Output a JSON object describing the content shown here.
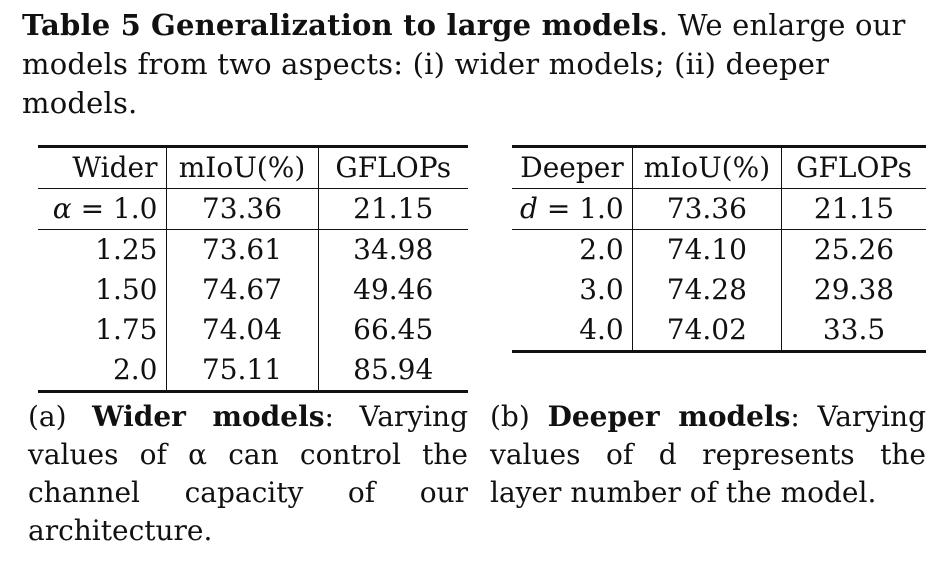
{
  "caption": {
    "table_number": "Table 5",
    "title": "Generalization to large models",
    "text": ". We enlarge our models from two aspects: (i) wider models; (ii) deeper models."
  },
  "table_a": {
    "headers": [
      "Wider",
      "mIoU(%)",
      "GFLOPs"
    ],
    "rows": [
      {
        "param": "α = 1.0",
        "miou": "73.36",
        "gflops": "21.15"
      },
      {
        "param": "1.25",
        "miou": "73.61",
        "gflops": "34.98"
      },
      {
        "param": "1.50",
        "miou": "74.67",
        "gflops": "49.46"
      },
      {
        "param": "1.75",
        "miou": "74.04",
        "gflops": "66.45"
      },
      {
        "param": "2.0",
        "miou": "75.11",
        "gflops": "85.94"
      }
    ],
    "sub_label": "(a)",
    "sub_title": "Wider models",
    "sub_text": ": Varying values of α can control the channel capacity of our architecture."
  },
  "table_b": {
    "headers": [
      "Deeper",
      "mIoU(%)",
      "GFLOPs"
    ],
    "rows": [
      {
        "param": "d = 1.0",
        "miou": "73.36",
        "gflops": "21.15"
      },
      {
        "param": "2.0",
        "miou": "74.10",
        "gflops": "25.26"
      },
      {
        "param": "3.0",
        "miou": "74.28",
        "gflops": "29.38"
      },
      {
        "param": "4.0",
        "miou": "74.02",
        "gflops": "33.5"
      }
    ],
    "sub_label": "(b)",
    "sub_title": "Deeper models",
    "sub_text": ": Varying values of d represents the layer number of the model."
  }
}
